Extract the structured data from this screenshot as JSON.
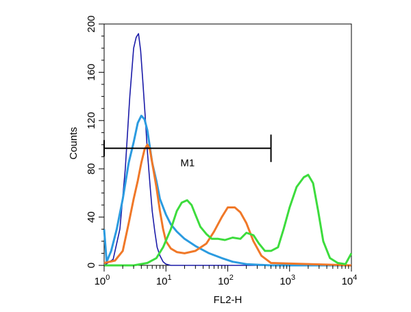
{
  "chart_data": {
    "type": "line",
    "xlabel": "FL2-H",
    "ylabel": "Counts",
    "x_scale": "log",
    "xlim": [
      1,
      10000
    ],
    "ylim": [
      0,
      200
    ],
    "x_ticks": [
      {
        "value": 1,
        "base": "10",
        "exp": "0"
      },
      {
        "value": 10,
        "base": "10",
        "exp": "1"
      },
      {
        "value": 100,
        "base": "10",
        "exp": "2"
      },
      {
        "value": 1000,
        "base": "10",
        "exp": "3"
      },
      {
        "value": 10000,
        "base": "10",
        "exp": "4"
      }
    ],
    "y_ticks": [
      "0",
      "40",
      "80",
      "120",
      "160",
      "200"
    ],
    "grid": false,
    "legend": "none",
    "marker": {
      "label": "M1",
      "x_start": 1,
      "x_end": 500,
      "y": 97
    },
    "series": [
      {
        "color": "#1a1aa8",
        "x": [
          1,
          1.4,
          1.8,
          2.2,
          2.6,
          3.0,
          3.3,
          3.6,
          3.9,
          4.2,
          4.6,
          5.0,
          5.5,
          6.0,
          6.6,
          7.2,
          8.0,
          9.0,
          10,
          12,
          15,
          20,
          50,
          200,
          1000,
          10000
        ],
        "y": [
          0,
          5,
          30,
          80,
          140,
          180,
          189,
          192,
          178,
          155,
          125,
          95,
          68,
          45,
          28,
          15,
          8,
          3,
          1,
          0,
          0,
          0,
          0,
          0,
          0,
          0
        ]
      },
      {
        "color": "#2b9be0",
        "x": [
          1,
          1.1,
          1.3,
          1.6,
          2.0,
          2.5,
          3.0,
          3.5,
          4.0,
          4.5,
          5.0,
          5.5,
          6.0,
          7.0,
          8.0,
          10,
          12,
          15,
          20,
          30,
          50,
          80,
          120,
          200,
          500,
          10000
        ],
        "y": [
          30,
          3,
          12,
          30,
          55,
          85,
          102,
          118,
          124,
          121,
          112,
          98,
          85,
          70,
          55,
          42,
          34,
          28,
          22,
          16,
          10,
          6,
          3,
          1,
          0,
          0
        ]
      },
      {
        "color": "#f07828",
        "x": [
          1,
          1.5,
          2.0,
          2.5,
          3.0,
          3.5,
          4.0,
          4.5,
          5.0,
          5.5,
          6.0,
          7.0,
          8.0,
          9.0,
          10,
          12,
          15,
          20,
          30,
          45,
          60,
          80,
          100,
          130,
          160,
          200,
          260,
          350,
          500,
          10000
        ],
        "y": [
          2,
          4,
          12,
          35,
          55,
          70,
          85,
          96,
          100,
          96,
          85,
          65,
          45,
          30,
          20,
          14,
          11,
          10,
          12,
          18,
          28,
          40,
          48,
          48,
          44,
          35,
          20,
          8,
          2,
          0
        ]
      },
      {
        "color": "#3ddc3d",
        "x": [
          1,
          3,
          5,
          7,
          9,
          12,
          15,
          18,
          22,
          26,
          30,
          36,
          45,
          55,
          70,
          90,
          120,
          160,
          200,
          260,
          320,
          400,
          500,
          650,
          800,
          1000,
          1300,
          1700,
          2000,
          2400,
          2900,
          3500,
          4500,
          6000,
          8000,
          10000
        ],
        "y": [
          0,
          0,
          2,
          6,
          15,
          30,
          45,
          52,
          54,
          50,
          42,
          32,
          26,
          22,
          22,
          21,
          23,
          22,
          27,
          25,
          18,
          12,
          12,
          15,
          30,
          48,
          65,
          73,
          75,
          68,
          45,
          20,
          6,
          2,
          1,
          10
        ]
      }
    ]
  }
}
